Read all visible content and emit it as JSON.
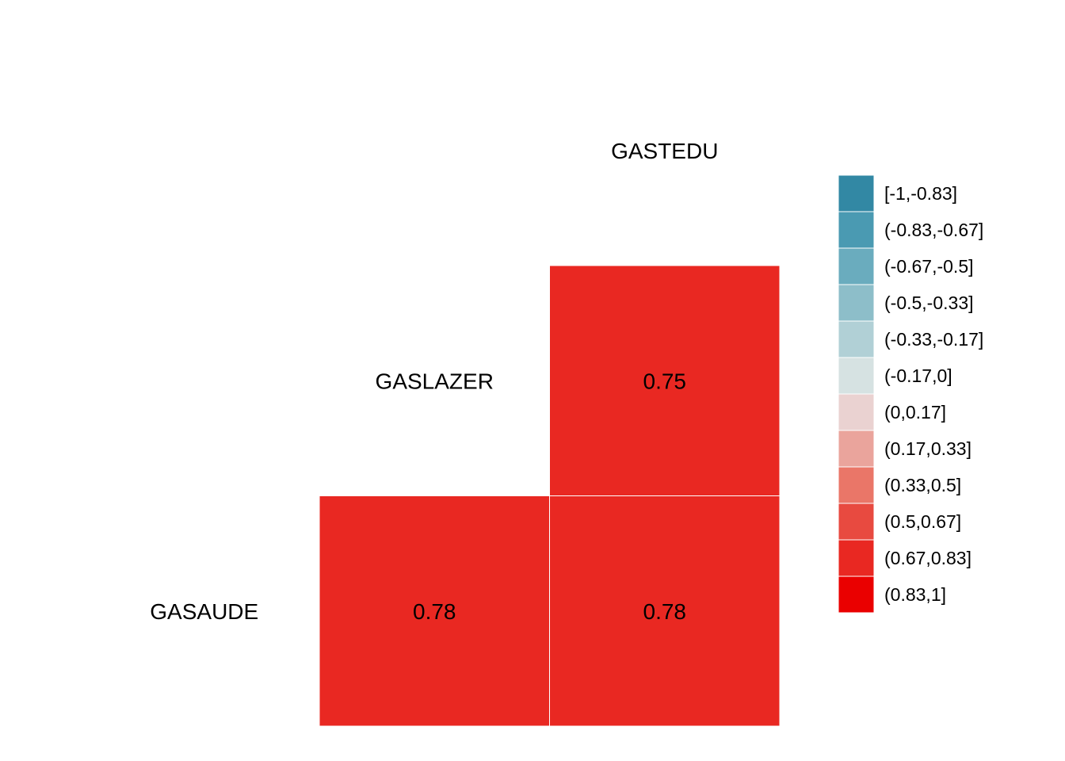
{
  "chart_data": {
    "type": "heatmap",
    "variables": [
      "GASAUDE",
      "GASLAZER",
      "GASTEDU"
    ],
    "cells": [
      {
        "row": "GASLAZER",
        "col": "GASTEDU",
        "value": 0.75,
        "label": "0.75"
      },
      {
        "row": "GASAUDE",
        "col": "GASLAZER",
        "value": 0.78,
        "label": "0.78"
      },
      {
        "row": "GASAUDE",
        "col": "GASTEDU",
        "value": 0.78,
        "label": "0.78"
      }
    ],
    "legend": {
      "placement": "right",
      "bins": [
        {
          "label": "[-1,-0.83]",
          "color": "#3288a4"
        },
        {
          "label": "(-0.83,-0.67]",
          "color": "#4a9ab2"
        },
        {
          "label": "(-0.67,-0.5]",
          "color": "#6aacbe"
        },
        {
          "label": "(-0.5,-0.33]",
          "color": "#8dbec9"
        },
        {
          "label": "(-0.33,-0.17]",
          "color": "#b1d0d6"
        },
        {
          "label": "(-0.17,0]",
          "color": "#d6e2e2"
        },
        {
          "label": "(0,0.17]",
          "color": "#ead2d1"
        },
        {
          "label": "(0.17,0.33]",
          "color": "#eaa49c"
        },
        {
          "label": "(0.33,0.5]",
          "color": "#ea7668"
        },
        {
          "label": "(0.5,0.67]",
          "color": "#e84a40"
        },
        {
          "label": "(0.67,0.83]",
          "color": "#e92822"
        },
        {
          "label": "(0.83,1]",
          "color": "#ea0000"
        }
      ]
    },
    "grid": false
  }
}
